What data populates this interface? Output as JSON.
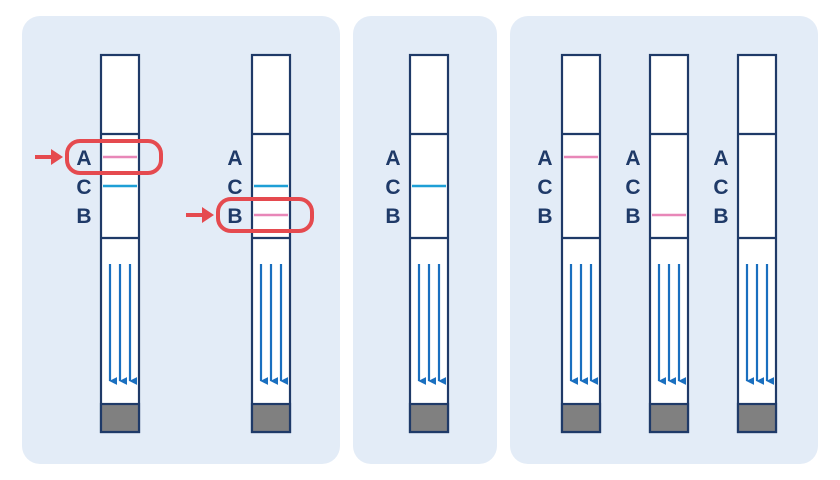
{
  "colors": {
    "panel_bg": "#e3ecf7",
    "outline": "#1f3a68",
    "label_text": "#1f3a68",
    "test_line": "#e887b8",
    "control_line": "#1e9fd6",
    "flow_arrow": "#1a6fbf",
    "sample_pad": "#808080",
    "highlight": "#e54a4f"
  },
  "panels": [
    {
      "id": "panel-1",
      "strips": [
        {
          "labels": [
            "A",
            "C",
            "B"
          ],
          "lines": {
            "A": true,
            "C": true,
            "B": false
          },
          "highlight": "A"
        },
        {
          "labels": [
            "A",
            "C",
            "B"
          ],
          "lines": {
            "A": false,
            "C": true,
            "B": true
          },
          "highlight": "B"
        }
      ]
    },
    {
      "id": "panel-2",
      "strips": [
        {
          "labels": [
            "A",
            "C",
            "B"
          ],
          "lines": {
            "A": false,
            "C": true,
            "B": false
          },
          "highlight": null
        }
      ]
    },
    {
      "id": "panel-3",
      "strips": [
        {
          "labels": [
            "A",
            "C",
            "B"
          ],
          "lines": {
            "A": true,
            "C": false,
            "B": false
          },
          "highlight": null
        },
        {
          "labels": [
            "A",
            "C",
            "B"
          ],
          "lines": {
            "A": false,
            "C": false,
            "B": true
          },
          "highlight": null
        },
        {
          "labels": [
            "A",
            "C",
            "B"
          ],
          "lines": {
            "A": false,
            "C": false,
            "B": false
          },
          "highlight": null
        }
      ]
    }
  ]
}
